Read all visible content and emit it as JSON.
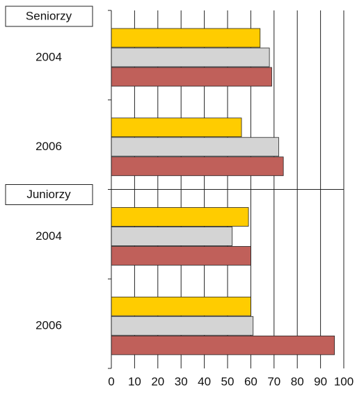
{
  "chart_data": {
    "type": "bar",
    "orientation": "horizontal",
    "groups": [
      {
        "name": "Seniorzy",
        "categories": [
          0,
          1
        ]
      },
      {
        "name": "Juniorzy",
        "categories": [
          2,
          3
        ]
      }
    ],
    "categories": [
      "2004",
      "2006",
      "2004",
      "2006"
    ],
    "series": [
      {
        "color": "#ffcc00",
        "values": [
          64,
          56,
          59,
          60
        ]
      },
      {
        "color": "#d4d4d4",
        "values": [
          68,
          72,
          52,
          61
        ]
      },
      {
        "color": "#c0605a",
        "values": [
          69,
          74,
          60,
          96
        ]
      }
    ],
    "xlim": [
      0,
      100
    ],
    "xticks": [
      0,
      10,
      20,
      30,
      40,
      50,
      60,
      70,
      80,
      90,
      100
    ],
    "grid": true
  }
}
